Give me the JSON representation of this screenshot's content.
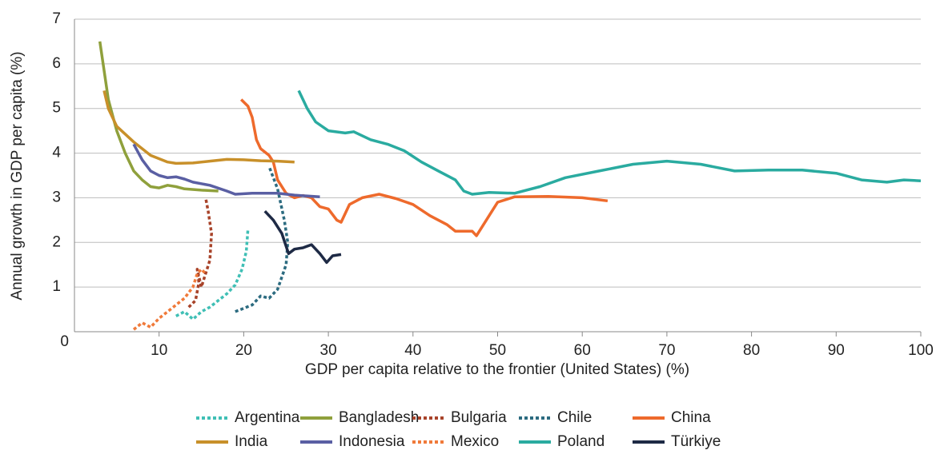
{
  "chart_data": {
    "type": "line",
    "xlabel": "GDP per capita relative to the frontier (United States) (%)",
    "ylabel": "Annual growth in GDP per capita (%)",
    "xlim": [
      0,
      100
    ],
    "xticks": [
      10,
      20,
      30,
      40,
      50,
      60,
      70,
      80,
      90,
      100
    ],
    "ylim": [
      0,
      7
    ],
    "yticks": [
      0,
      1,
      2,
      3,
      4,
      5,
      6,
      7
    ],
    "grid": true,
    "legend": "bottom",
    "series": [
      {
        "name": "Argentina",
        "color": "#3fbfb5",
        "style": "dotted",
        "x": [
          12,
          13,
          14,
          15,
          16,
          17,
          18,
          19,
          19.8,
          20.3,
          20.5
        ],
        "values": [
          0.35,
          0.45,
          0.28,
          0.45,
          0.55,
          0.7,
          0.85,
          1.05,
          1.4,
          1.8,
          2.3
        ]
      },
      {
        "name": "Bangladesh",
        "color": "#8fa03c",
        "style": "solid",
        "x": [
          3,
          4,
          5,
          6,
          7,
          8,
          9,
          10,
          11,
          12,
          13,
          15,
          17
        ],
        "values": [
          6.5,
          5.2,
          4.5,
          4.0,
          3.6,
          3.4,
          3.25,
          3.22,
          3.28,
          3.25,
          3.2,
          3.17,
          3.15
        ]
      },
      {
        "name": "Bulgaria",
        "color": "#a8432a",
        "style": "dotted",
        "x": [
          13.5,
          14.3,
          14.7,
          14.5,
          15,
          15.5,
          16,
          16.2,
          15.8,
          15.5
        ],
        "values": [
          0.55,
          0.7,
          1.1,
          1.4,
          1.0,
          1.3,
          1.6,
          2.2,
          2.7,
          3.0
        ]
      },
      {
        "name": "Chile",
        "color": "#2c6b80",
        "style": "dotted",
        "x": [
          19,
          21,
          22,
          23,
          24,
          25,
          25.2,
          24.8,
          24,
          23
        ],
        "values": [
          0.45,
          0.6,
          0.8,
          0.75,
          0.95,
          1.5,
          2.0,
          2.5,
          3.2,
          3.7
        ]
      },
      {
        "name": "China",
        "color": "#ee6a2c",
        "style": "solid",
        "x": [
          19.7,
          20.5,
          21,
          21.5,
          22,
          23,
          23.5,
          24,
          25,
          26,
          27,
          28,
          29,
          30,
          31,
          31.5,
          32.5,
          34,
          36,
          38,
          40,
          42,
          44,
          45,
          47,
          47.5,
          49,
          50,
          52,
          56,
          60,
          63
        ],
        "values": [
          5.2,
          5.05,
          4.8,
          4.3,
          4.1,
          3.95,
          3.8,
          3.4,
          3.1,
          3.0,
          3.05,
          3.0,
          2.8,
          2.75,
          2.5,
          2.45,
          2.85,
          3.0,
          3.08,
          2.98,
          2.85,
          2.6,
          2.4,
          2.25,
          2.25,
          2.15,
          2.6,
          2.9,
          3.02,
          3.03,
          3.0,
          2.93
        ]
      },
      {
        "name": "India",
        "color": "#c8902a",
        "style": "solid",
        "x": [
          3.5,
          4,
          5,
          7,
          9,
          11,
          12,
          14,
          16,
          18,
          20,
          22,
          24,
          26
        ],
        "values": [
          5.4,
          5.0,
          4.6,
          4.25,
          3.95,
          3.8,
          3.77,
          3.78,
          3.82,
          3.86,
          3.85,
          3.83,
          3.82,
          3.8
        ]
      },
      {
        "name": "Indonesia",
        "color": "#5a5fa3",
        "style": "solid",
        "x": [
          7,
          8,
          9,
          10,
          11,
          12,
          13,
          14,
          16,
          18,
          19,
          21,
          24,
          26,
          29
        ],
        "values": [
          4.2,
          3.85,
          3.6,
          3.5,
          3.45,
          3.47,
          3.42,
          3.35,
          3.28,
          3.15,
          3.08,
          3.1,
          3.1,
          3.06,
          3.02
        ]
      },
      {
        "name": "Mexico",
        "color": "#f07a3a",
        "style": "dotted",
        "x": [
          7,
          8,
          9,
          10,
          11,
          12,
          13,
          14,
          14.5,
          15,
          15.5
        ],
        "values": [
          0.05,
          0.2,
          0.1,
          0.3,
          0.45,
          0.6,
          0.75,
          1.0,
          1.3,
          1.4,
          1.3
        ]
      },
      {
        "name": "Poland",
        "color": "#2aaba0",
        "style": "solid",
        "x": [
          26.5,
          27.5,
          28.5,
          30,
          32,
          33,
          35,
          37,
          39,
          41,
          43,
          45,
          46,
          47,
          49,
          52,
          55,
          58,
          62,
          66,
          70,
          74,
          78,
          82,
          86,
          90,
          93,
          96,
          98,
          100
        ],
        "values": [
          5.4,
          5.0,
          4.7,
          4.5,
          4.45,
          4.48,
          4.3,
          4.2,
          4.05,
          3.8,
          3.6,
          3.4,
          3.15,
          3.08,
          3.12,
          3.1,
          3.25,
          3.45,
          3.6,
          3.75,
          3.82,
          3.75,
          3.6,
          3.62,
          3.62,
          3.55,
          3.4,
          3.35,
          3.4,
          3.38
        ]
      },
      {
        "name": "Türkiye",
        "color": "#1e2a45",
        "style": "solid",
        "x": [
          22.5,
          23.5,
          24.5,
          25.3,
          26,
          27,
          28,
          29,
          29.8,
          30.5,
          31.5
        ],
        "values": [
          2.7,
          2.5,
          2.2,
          1.75,
          1.85,
          1.88,
          1.95,
          1.75,
          1.55,
          1.7,
          1.73
        ]
      }
    ]
  }
}
